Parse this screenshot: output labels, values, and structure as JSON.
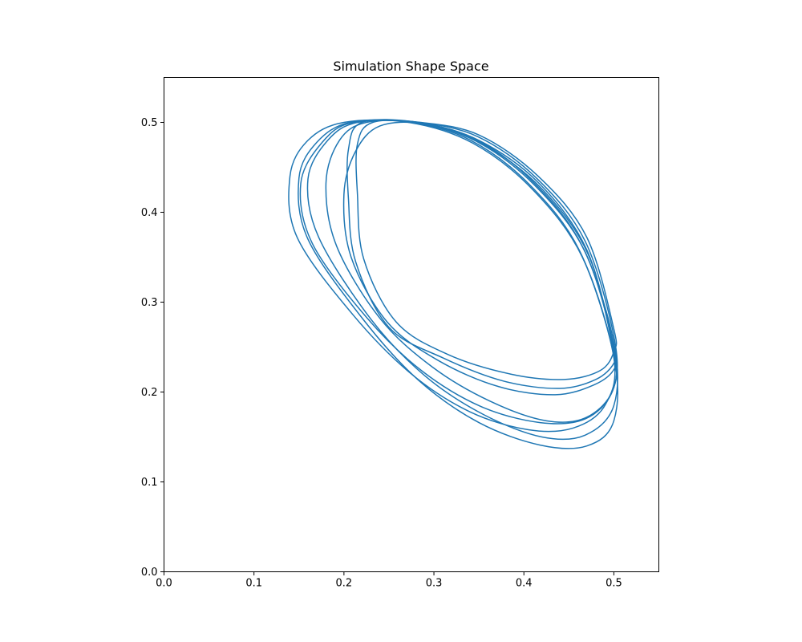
{
  "chart_data": {
    "type": "line",
    "title": "Simulation Shape Space",
    "xlabel": "",
    "ylabel": "",
    "xlim": [
      0.0,
      0.55
    ],
    "ylim": [
      0.0,
      0.55
    ],
    "xticks": [
      0.0,
      0.1,
      0.2,
      0.3,
      0.4,
      0.5
    ],
    "yticks": [
      0.0,
      0.1,
      0.2,
      0.3,
      0.4,
      0.5
    ],
    "xtick_labels": [
      "0.0",
      "0.1",
      "0.2",
      "0.3",
      "0.4",
      "0.5"
    ],
    "ytick_labels": [
      "0.0",
      "0.1",
      "0.2",
      "0.3",
      "0.4",
      "0.5"
    ],
    "grid": false,
    "line_color": "#1f77b4",
    "series": [
      {
        "values": [
          [
            0.5,
            0.24
          ],
          [
            0.462,
            0.357
          ],
          [
            0.406,
            0.431
          ],
          [
            0.341,
            0.48
          ],
          [
            0.274,
            0.5
          ],
          [
            0.207,
            0.5
          ],
          [
            0.17,
            0.478
          ],
          [
            0.15,
            0.438
          ],
          [
            0.16,
            0.37
          ],
          [
            0.222,
            0.28
          ],
          [
            0.283,
            0.213
          ],
          [
            0.35,
            0.166
          ],
          [
            0.418,
            0.141
          ],
          [
            0.47,
            0.14
          ],
          [
            0.5,
            0.168
          ],
          [
            0.5,
            0.24
          ]
        ]
      },
      {
        "values": [
          [
            0.5,
            0.255
          ],
          [
            0.465,
            0.362
          ],
          [
            0.41,
            0.434
          ],
          [
            0.345,
            0.482
          ],
          [
            0.278,
            0.5
          ],
          [
            0.215,
            0.5
          ],
          [
            0.182,
            0.48
          ],
          [
            0.16,
            0.437
          ],
          [
            0.172,
            0.372
          ],
          [
            0.23,
            0.281
          ],
          [
            0.29,
            0.218
          ],
          [
            0.355,
            0.175
          ],
          [
            0.42,
            0.15
          ],
          [
            0.468,
            0.152
          ],
          [
            0.5,
            0.185
          ],
          [
            0.5,
            0.255
          ]
        ]
      },
      {
        "values": [
          [
            0.5,
            0.262
          ],
          [
            0.468,
            0.368
          ],
          [
            0.414,
            0.438
          ],
          [
            0.349,
            0.484
          ],
          [
            0.283,
            0.5
          ],
          [
            0.225,
            0.5
          ],
          [
            0.195,
            0.48
          ],
          [
            0.18,
            0.432
          ],
          [
            0.192,
            0.362
          ],
          [
            0.24,
            0.282
          ],
          [
            0.298,
            0.228
          ],
          [
            0.362,
            0.19
          ],
          [
            0.425,
            0.168
          ],
          [
            0.47,
            0.172
          ],
          [
            0.5,
            0.205
          ],
          [
            0.5,
            0.262
          ]
        ]
      },
      {
        "values": [
          [
            0.5,
            0.245
          ],
          [
            0.472,
            0.352
          ],
          [
            0.42,
            0.426
          ],
          [
            0.354,
            0.476
          ],
          [
            0.29,
            0.498
          ],
          [
            0.24,
            0.496
          ],
          [
            0.213,
            0.468
          ],
          [
            0.2,
            0.42
          ],
          [
            0.208,
            0.35
          ],
          [
            0.248,
            0.278
          ],
          [
            0.305,
            0.235
          ],
          [
            0.372,
            0.206
          ],
          [
            0.435,
            0.197
          ],
          [
            0.478,
            0.208
          ],
          [
            0.5,
            0.225
          ],
          [
            0.5,
            0.245
          ]
        ]
      },
      {
        "values": [
          [
            0.5,
            0.25
          ],
          [
            0.47,
            0.358
          ],
          [
            0.417,
            0.432
          ],
          [
            0.35,
            0.48
          ],
          [
            0.282,
            0.5
          ],
          [
            0.22,
            0.5
          ],
          [
            0.205,
            0.47
          ],
          [
            0.205,
            0.415
          ],
          [
            0.213,
            0.345
          ],
          [
            0.25,
            0.272
          ],
          [
            0.31,
            0.238
          ],
          [
            0.378,
            0.212
          ],
          [
            0.44,
            0.204
          ],
          [
            0.48,
            0.214
          ],
          [
            0.5,
            0.232
          ],
          [
            0.5,
            0.25
          ]
        ]
      },
      {
        "values": [
          [
            0.5,
            0.238
          ],
          [
            0.465,
            0.35
          ],
          [
            0.41,
            0.425
          ],
          [
            0.343,
            0.477
          ],
          [
            0.272,
            0.5
          ],
          [
            0.2,
            0.5
          ],
          [
            0.16,
            0.48
          ],
          [
            0.14,
            0.44
          ],
          [
            0.148,
            0.372
          ],
          [
            0.21,
            0.286
          ],
          [
            0.275,
            0.22
          ],
          [
            0.34,
            0.178
          ],
          [
            0.405,
            0.158
          ],
          [
            0.455,
            0.16
          ],
          [
            0.49,
            0.185
          ],
          [
            0.5,
            0.238
          ]
        ]
      },
      {
        "values": [
          [
            0.5,
            0.27
          ],
          [
            0.47,
            0.372
          ],
          [
            0.416,
            0.44
          ],
          [
            0.35,
            0.486
          ],
          [
            0.285,
            0.5
          ],
          [
            0.232,
            0.5
          ],
          [
            0.215,
            0.476
          ],
          [
            0.215,
            0.42
          ],
          [
            0.222,
            0.348
          ],
          [
            0.258,
            0.278
          ],
          [
            0.315,
            0.242
          ],
          [
            0.385,
            0.22
          ],
          [
            0.445,
            0.214
          ],
          [
            0.485,
            0.224
          ],
          [
            0.5,
            0.245
          ],
          [
            0.5,
            0.27
          ]
        ]
      },
      {
        "values": [
          [
            0.5,
            0.248
          ],
          [
            0.468,
            0.356
          ],
          [
            0.412,
            0.43
          ],
          [
            0.347,
            0.479
          ],
          [
            0.28,
            0.5
          ],
          [
            0.21,
            0.5
          ],
          [
            0.176,
            0.478
          ],
          [
            0.152,
            0.432
          ],
          [
            0.165,
            0.365
          ],
          [
            0.226,
            0.282
          ],
          [
            0.286,
            0.224
          ],
          [
            0.352,
            0.184
          ],
          [
            0.418,
            0.166
          ],
          [
            0.468,
            0.17
          ],
          [
            0.498,
            0.2
          ],
          [
            0.5,
            0.248
          ]
        ]
      }
    ]
  }
}
